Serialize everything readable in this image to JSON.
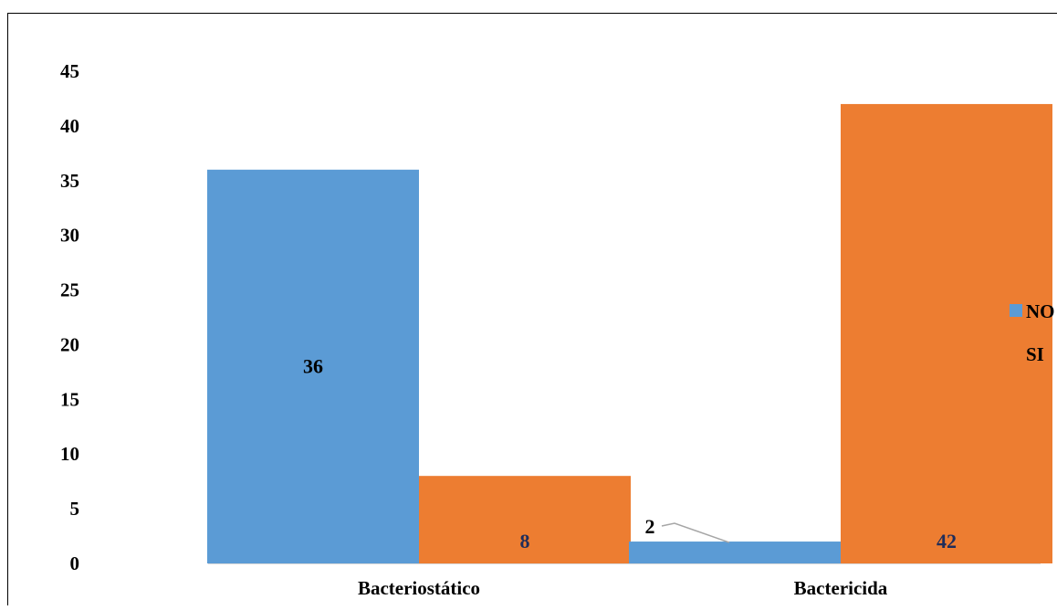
{
  "chart_data": {
    "type": "bar",
    "title": "",
    "xlabel": "",
    "ylabel": "",
    "categories": [
      "Bacteriostático",
      "Bactericida"
    ],
    "series": [
      {
        "name": "NO",
        "color": "#5B9BD5",
        "values": [
          36,
          2
        ]
      },
      {
        "name": "SI",
        "color": "#ED7D31",
        "values": [
          8,
          42
        ]
      }
    ],
    "ylim": [
      0,
      45
    ],
    "yticks": [
      "0",
      "5",
      "10",
      "15",
      "20",
      "25",
      "30",
      "35",
      "40",
      "45"
    ],
    "data_labels": [
      "36",
      "2",
      "8",
      "42"
    ],
    "grid": false,
    "legend_position": "right"
  }
}
